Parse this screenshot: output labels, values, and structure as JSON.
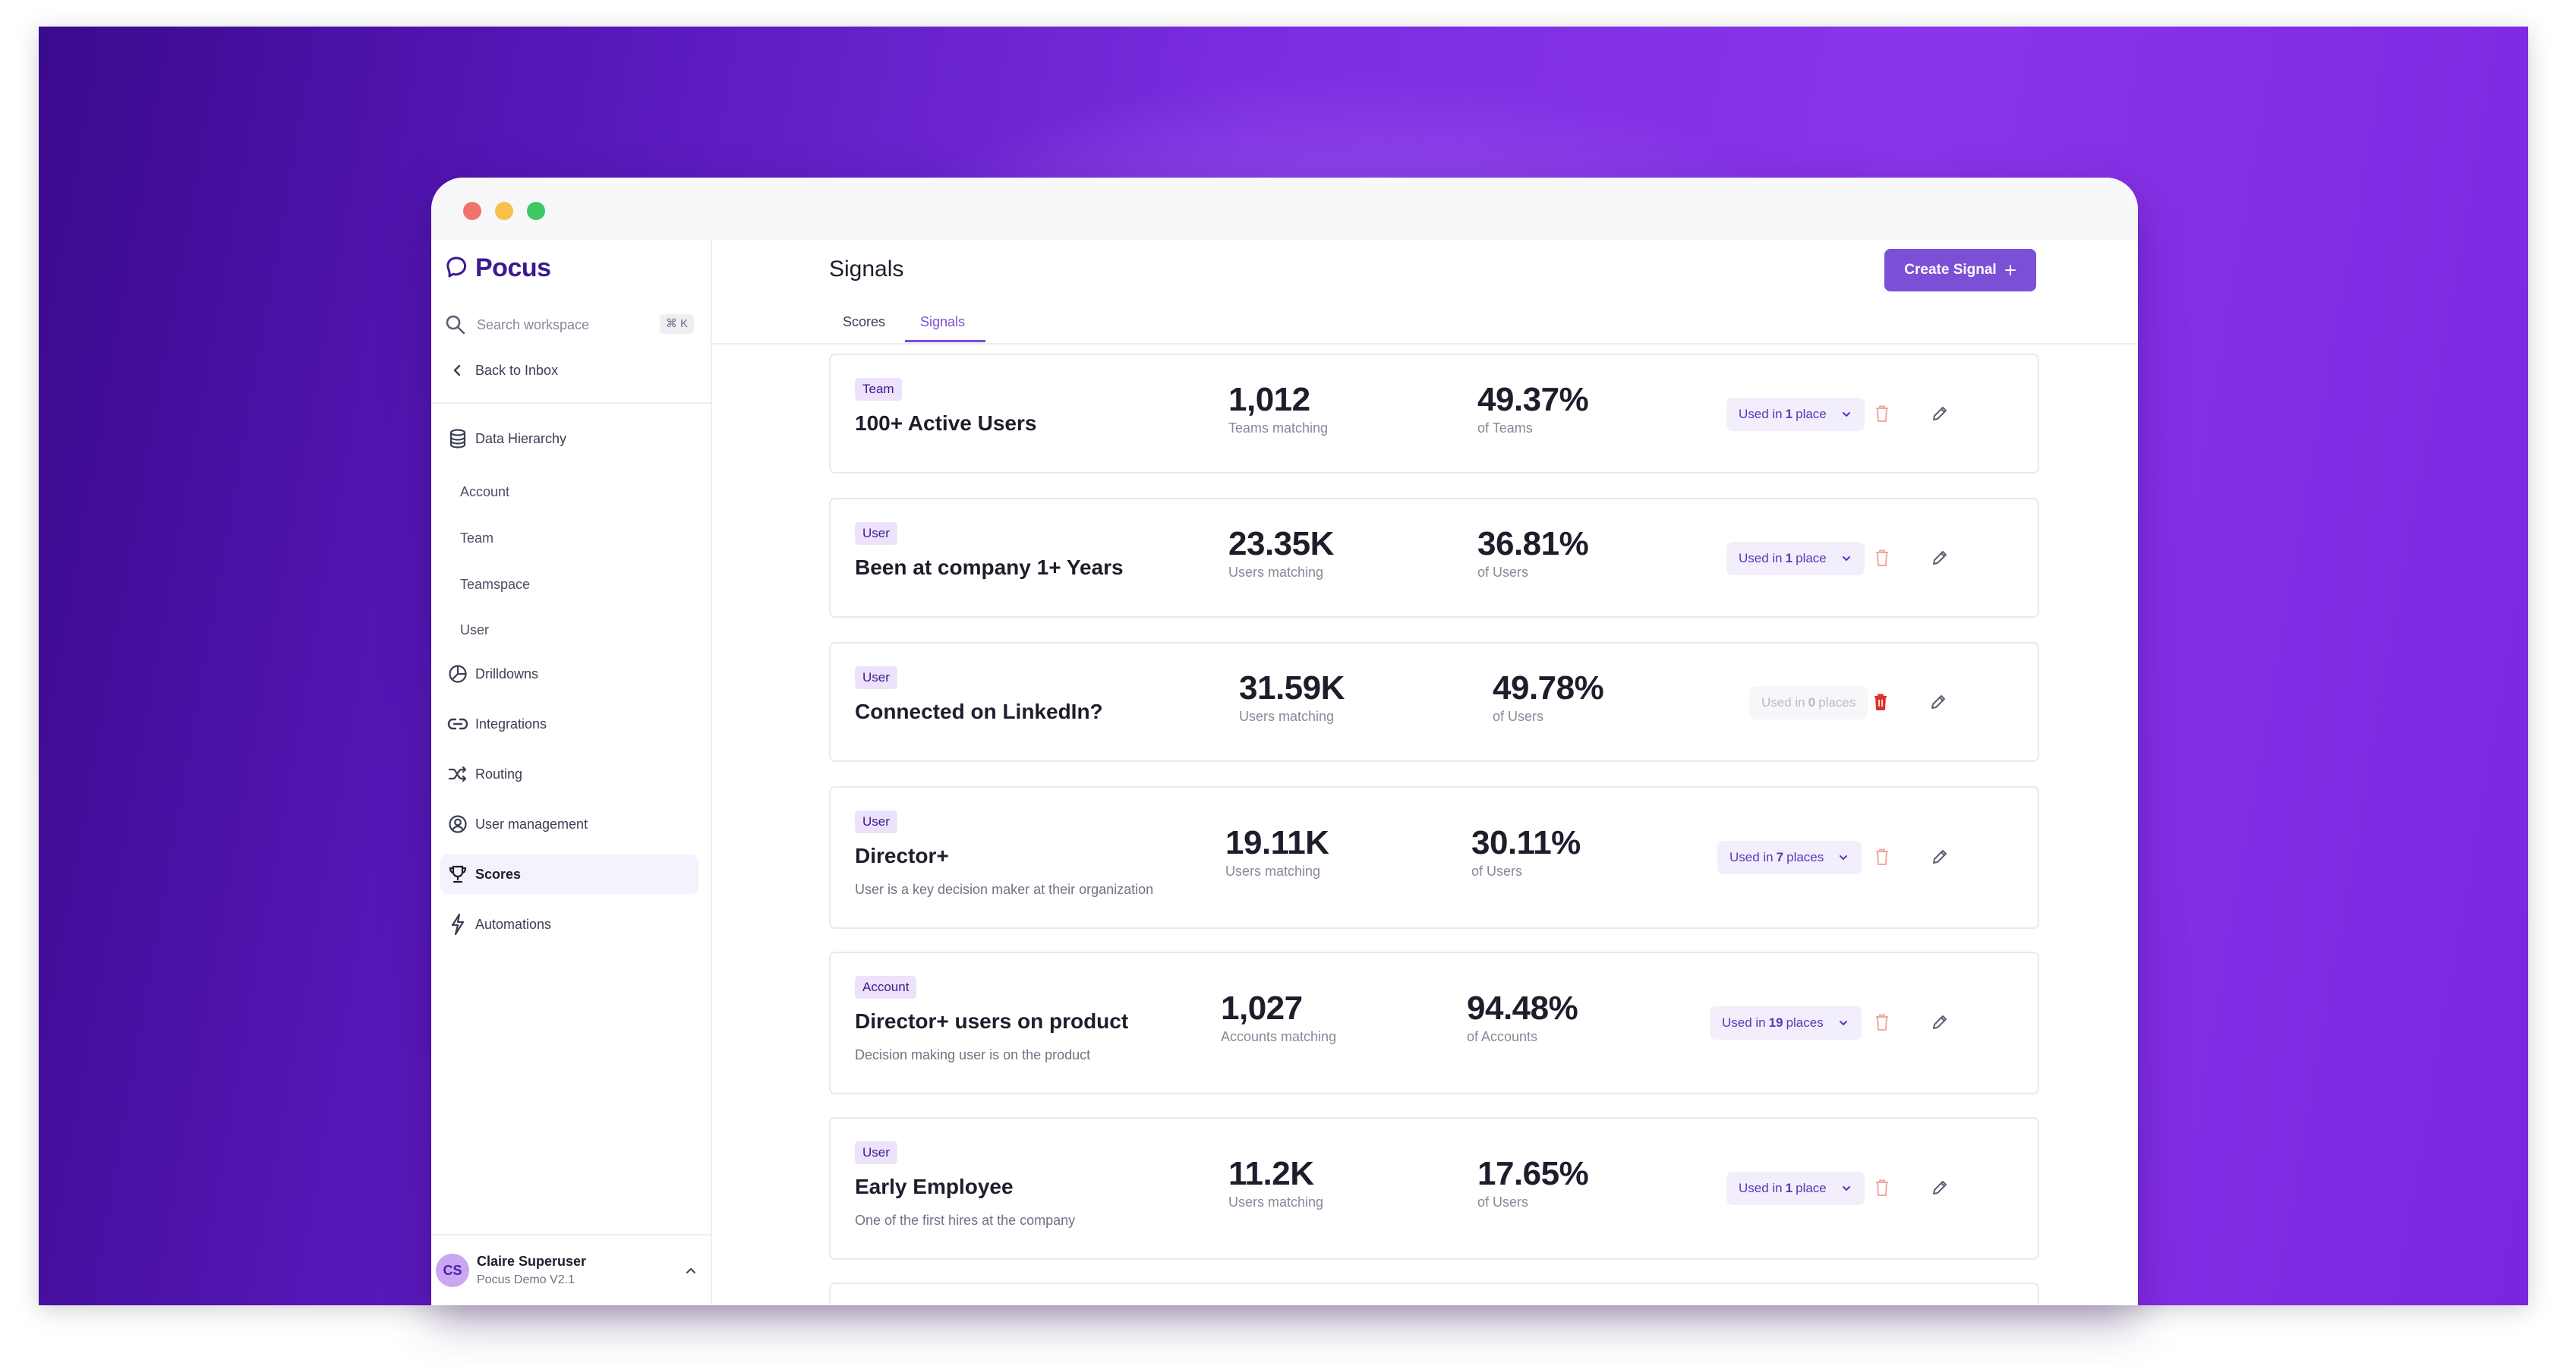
{
  "app": {
    "name": "Pocus"
  },
  "search": {
    "placeholder": "Search workspace",
    "shortcut": "⌘ K"
  },
  "sidebar": {
    "back": "Back to Inbox",
    "data_hierarchy": "Data Hierarchy",
    "sub_items": [
      "Account",
      "Team",
      "Teamspace",
      "User"
    ],
    "items": [
      {
        "label": "Drilldowns",
        "icon": "pie-chart-icon"
      },
      {
        "label": "Integrations",
        "icon": "link-icon"
      },
      {
        "label": "Routing",
        "icon": "shuffle-icon"
      },
      {
        "label": "User management",
        "icon": "user-circle-icon"
      },
      {
        "label": "Scores",
        "icon": "trophy-icon"
      },
      {
        "label": "Automations",
        "icon": "lightning-icon"
      }
    ],
    "user": {
      "initials": "CS",
      "name": "Claire Superuser",
      "org": "Pocus Demo V2.1"
    }
  },
  "main": {
    "title": "Signals",
    "create_button": "Create Signal",
    "tabs": [
      "Scores",
      "Signals"
    ],
    "active_tab": "Signals"
  },
  "signals": [
    {
      "badge": "Team",
      "title": "100+ Active Users",
      "description": "",
      "count": "1,012",
      "count_label": "Teams matching",
      "percent": "49.37%",
      "percent_label": "of Teams",
      "used_prefix": "Used in ",
      "used_num": "1",
      "used_suffix": " place",
      "deletable": false
    },
    {
      "badge": "User",
      "title": "Been at company 1+ Years",
      "description": "",
      "count": "23.35K",
      "count_label": "Users matching",
      "percent": "36.81%",
      "percent_label": "of Users",
      "used_prefix": "Used in ",
      "used_num": "1",
      "used_suffix": " place",
      "deletable": false
    },
    {
      "badge": "User",
      "title": "Connected on LinkedIn?",
      "description": "",
      "count": "31.59K",
      "count_label": "Users matching",
      "percent": "49.78%",
      "percent_label": "of Users",
      "used_prefix": "Used in ",
      "used_num": "0",
      "used_suffix": " places",
      "deletable": true
    },
    {
      "badge": "User",
      "title": "Director+",
      "description": "User is a key decision maker at their organization",
      "count": "19.11K",
      "count_label": "Users matching",
      "percent": "30.11%",
      "percent_label": "of Users",
      "used_prefix": "Used in ",
      "used_num": "7",
      "used_suffix": " places",
      "deletable": false
    },
    {
      "badge": "Account",
      "title": "Director+ users on product",
      "description": "Decision making user is on the product",
      "count": "1,027",
      "count_label": "Accounts matching",
      "percent": "94.48%",
      "percent_label": "of Accounts",
      "used_prefix": "Used in ",
      "used_num": "19",
      "used_suffix": " places",
      "deletable": false
    },
    {
      "badge": "User",
      "title": "Early Employee",
      "description": "One of the first hires at the company",
      "count": "11.2K",
      "count_label": "Users matching",
      "percent": "17.65%",
      "percent_label": "of Users",
      "used_prefix": "Used in ",
      "used_num": "1",
      "used_suffix": " place",
      "deletable": false
    }
  ],
  "colors": {
    "accent": "#7b4fd6",
    "badge_bg": "#ece3fb",
    "delete_active": "#d9342b",
    "delete_muted": "#f2a7a2"
  }
}
